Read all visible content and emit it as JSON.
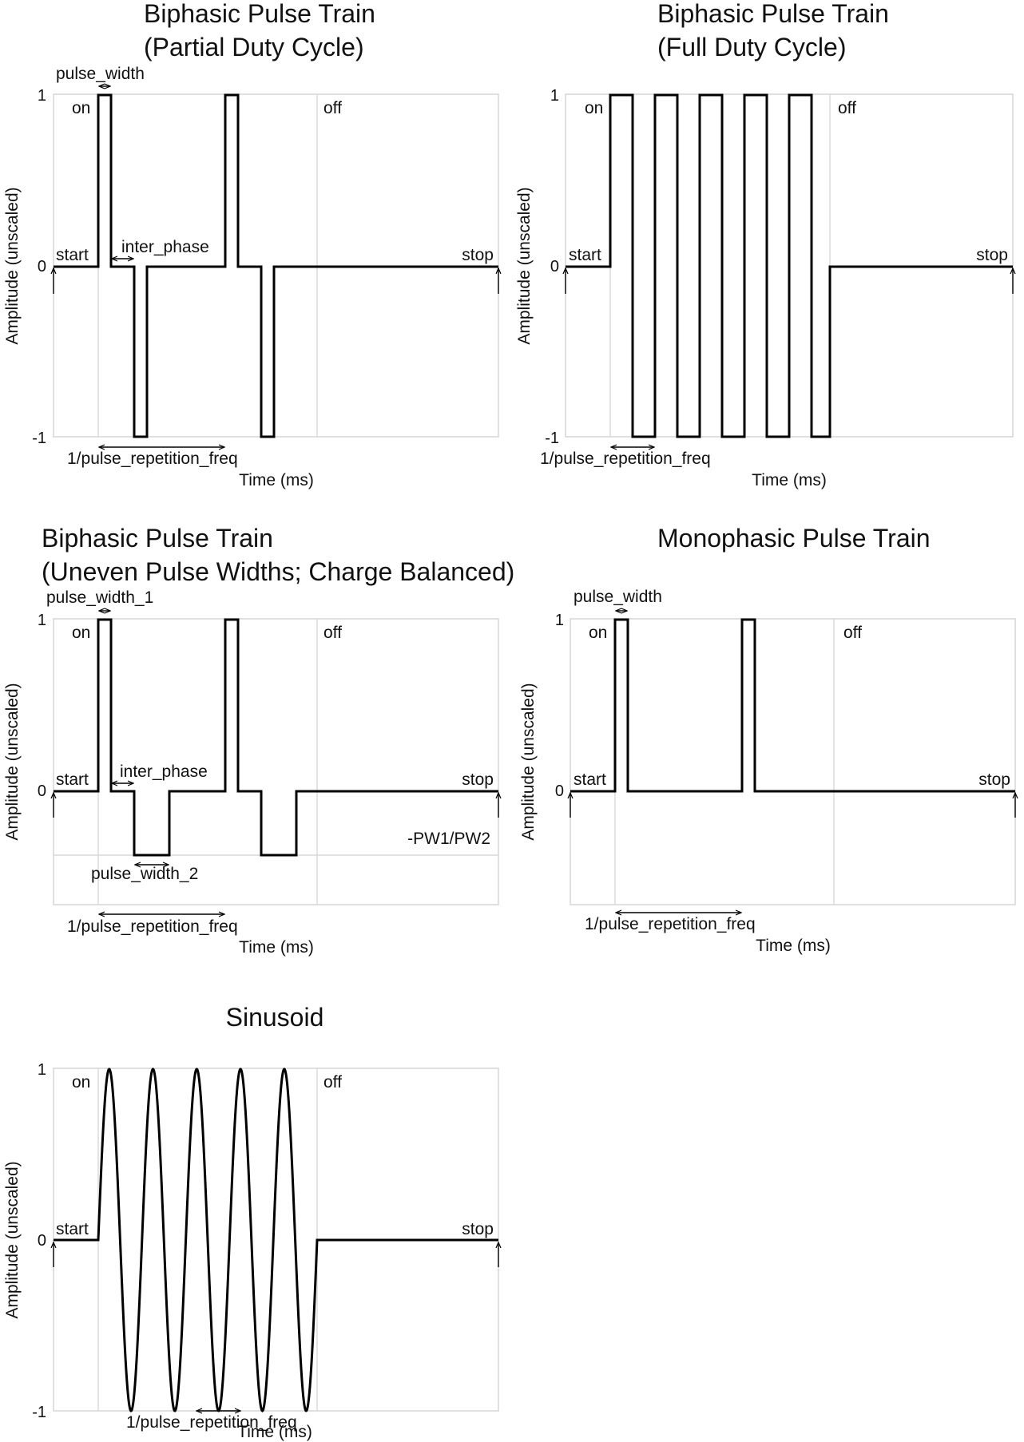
{
  "common": {
    "y_axis_label": "Amplitude (unscaled)",
    "x_axis_label": "Time (ms)",
    "on": "on",
    "off": "off",
    "start": "start",
    "stop": "stop"
  },
  "panels": {
    "biphasic_partial": {
      "title_line1": "Biphasic Pulse Train",
      "title_line2": "(Partial Duty Cycle)",
      "ticks": [
        "1",
        "0",
        "-1"
      ],
      "pulse_width_label": "pulse_width",
      "inter_phase_label": "inter_phase",
      "period_label": "1/pulse_repetition_freq"
    },
    "biphasic_full": {
      "title_line1": "Biphasic Pulse Train",
      "title_line2": "(Full Duty Cycle)",
      "ticks": [
        "1",
        "0",
        "-1"
      ],
      "period_label": "1/pulse_repetition_freq"
    },
    "biphasic_uneven": {
      "title_line1": "Biphasic Pulse Train",
      "title_line2": "(Uneven Pulse Widths; Charge Balanced)",
      "ticks": [
        "1",
        "0"
      ],
      "pulse_width_1_label": "pulse_width_1",
      "inter_phase_label": "inter_phase",
      "pulse_width_2_label": "pulse_width_2",
      "level_label": "-PW1/PW2",
      "period_label": "1/pulse_repetition_freq"
    },
    "monophasic": {
      "title": "Monophasic Pulse Train",
      "ticks": [
        "1",
        "0"
      ],
      "pulse_width_label": "pulse_width",
      "period_label": "1/pulse_repetition_freq"
    },
    "sinusoid": {
      "title": "Sinusoid",
      "ticks": [
        "1",
        "0",
        "-1"
      ],
      "period_label": "1/pulse_repetition_freq"
    }
  }
}
